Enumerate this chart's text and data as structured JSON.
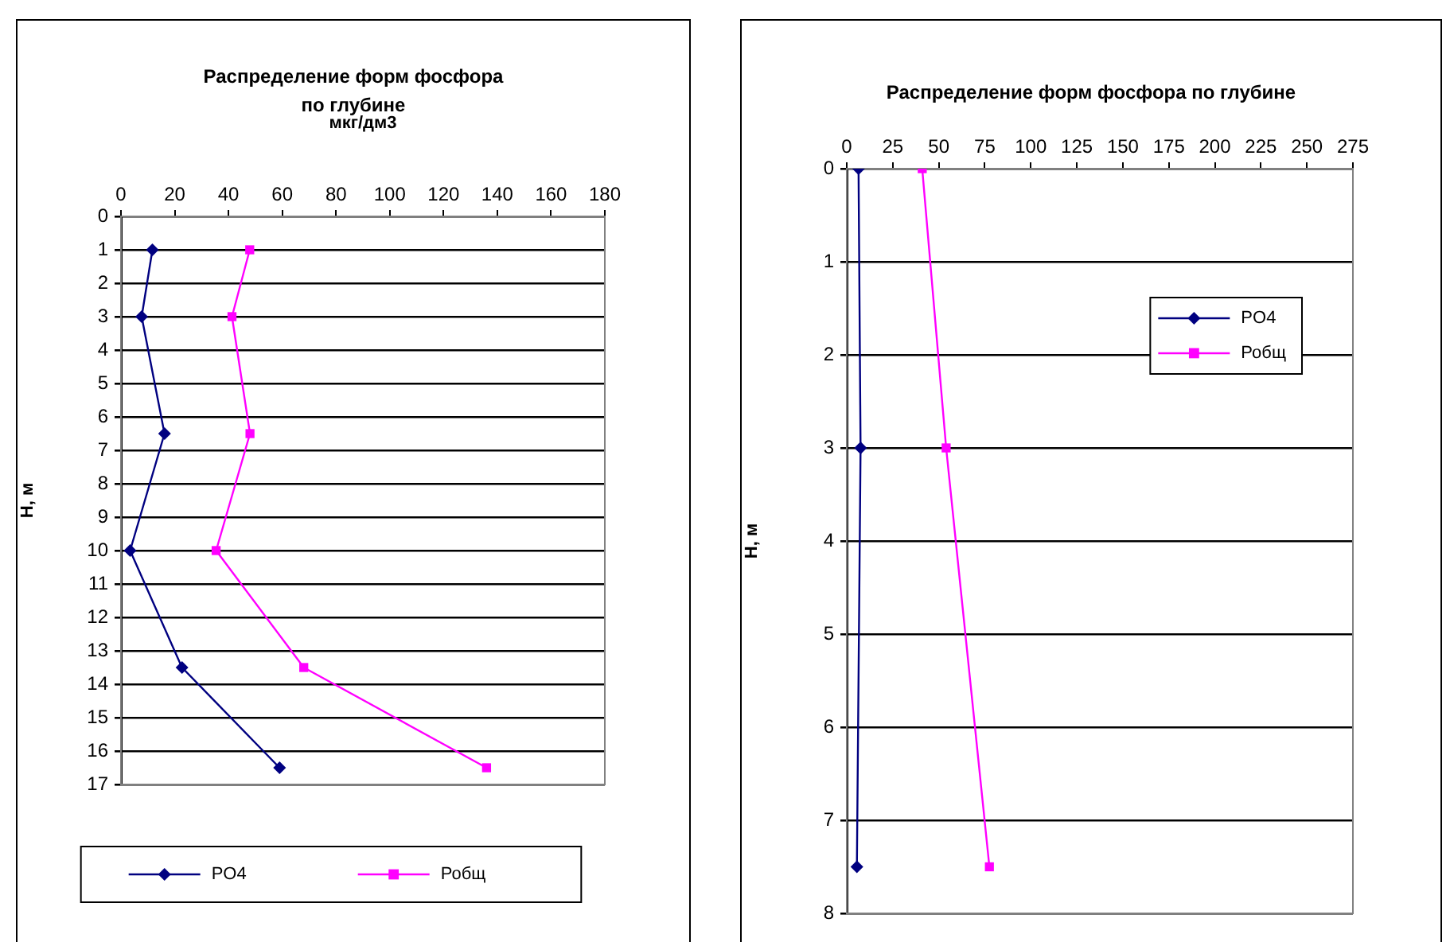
{
  "chart_data": [
    {
      "type": "line",
      "title": "Распределение форм фосфора по глубине",
      "xlabel": "мкг/дм3",
      "ylabel": "Н, м",
      "xlim": [
        0,
        180
      ],
      "xticks": [
        0,
        20,
        40,
        60,
        80,
        100,
        120,
        140,
        160,
        180
      ],
      "ylim": [
        17,
        0
      ],
      "yticks": [
        0,
        1,
        2,
        3,
        4,
        5,
        6,
        7,
        8,
        9,
        10,
        11,
        12,
        13,
        14,
        15,
        16,
        17
      ],
      "grid": "y",
      "legend": "bottom",
      "series": [
        {
          "name": "PO4",
          "color": "#000080",
          "marker": "diamond",
          "x": [
            11.7,
            7.7,
            16.2,
            3.4,
            22.7,
            59
          ],
          "values": [
            1,
            3,
            6.5,
            10,
            13.5,
            16.5
          ]
        },
        {
          "name": "Робщ",
          "color": "#ff00ff",
          "marker": "square",
          "x": [
            47.9,
            41.3,
            48,
            35.4,
            68,
            136
          ],
          "values": [
            1,
            3,
            6.5,
            10,
            13.5,
            16.5
          ]
        }
      ]
    },
    {
      "type": "line",
      "title": "Распределение форм фосфора по глубине",
      "ylabel": "Н, м",
      "xlim": [
        0,
        275
      ],
      "xticks": [
        0,
        25,
        50,
        75,
        100,
        125,
        150,
        175,
        200,
        225,
        250,
        275
      ],
      "ylim": [
        8,
        0
      ],
      "yticks": [
        0,
        1,
        2,
        3,
        4,
        5,
        6,
        7,
        8
      ],
      "grid": "y",
      "legend": "right",
      "series": [
        {
          "name": "PO4",
          "color": "#000080",
          "marker": "diamond",
          "x": [
            6.4,
            7.5,
            5.5
          ],
          "values": [
            0,
            3,
            7.5
          ]
        },
        {
          "name": "Робщ",
          "color": "#ff00ff",
          "marker": "square",
          "x": [
            41,
            54,
            77.5
          ],
          "values": [
            0,
            3,
            7.5
          ]
        }
      ]
    }
  ]
}
